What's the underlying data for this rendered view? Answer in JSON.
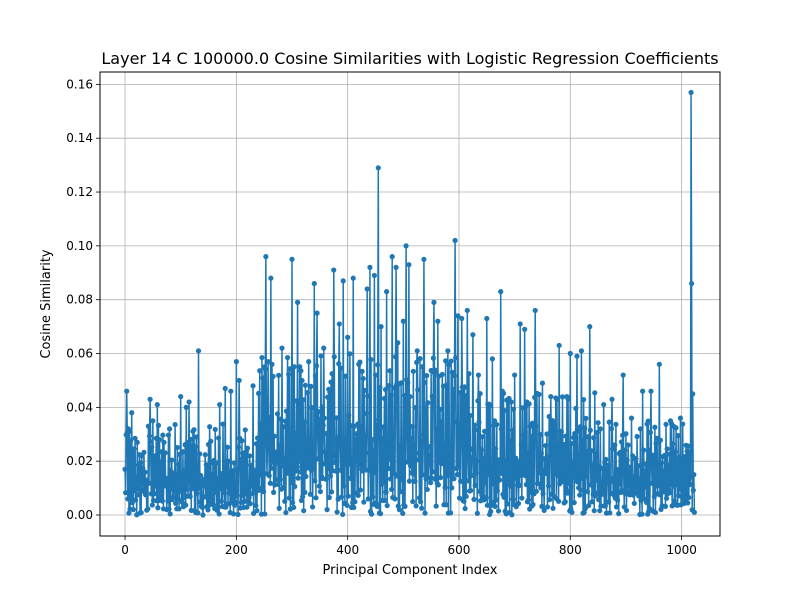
{
  "chart_data": {
    "type": "line",
    "title": "Layer 14 C 100000.0 Cosine Similarities with Logistic Regression Coefficients",
    "xlabel": "Principal Component Index",
    "ylabel": "Cosine Similarity",
    "xlim": [
      -45,
      1069
    ],
    "ylim": [
      -0.0078,
      0.1646
    ],
    "xticks": [
      0,
      200,
      400,
      600,
      800,
      1000
    ],
    "xtick_labels": [
      "0",
      "200",
      "400",
      "600",
      "800",
      "1000"
    ],
    "yticks": [
      0.0,
      0.02,
      0.04,
      0.06,
      0.08,
      0.1,
      0.12,
      0.14,
      0.16
    ],
    "ytick_labels": [
      "0.00",
      "0.02",
      "0.04",
      "0.06",
      "0.08",
      "0.10",
      "0.12",
      "0.14",
      "0.16"
    ],
    "grid": true,
    "marker": "circle",
    "color": "#1f77b4",
    "n_points": 1024,
    "series": [
      {
        "peaks": [
          [
            0,
            0.017
          ],
          [
            3,
            0.046
          ],
          [
            5,
            0.006
          ],
          [
            8,
            0.031
          ],
          [
            12,
            0.038
          ],
          [
            15,
            0.002
          ],
          [
            22,
            0.027
          ],
          [
            30,
            0.022
          ],
          [
            45,
            0.043
          ],
          [
            50,
            0.035
          ],
          [
            58,
            0.041
          ],
          [
            62,
            0.028
          ],
          [
            80,
            0.032
          ],
          [
            100,
            0.044
          ],
          [
            110,
            0.04
          ],
          [
            115,
            0.042
          ],
          [
            132,
            0.061
          ],
          [
            140,
            0.0
          ],
          [
            170,
            0.041
          ],
          [
            180,
            0.047
          ],
          [
            190,
            0.046
          ],
          [
            200,
            0.057
          ],
          [
            205,
            0.05
          ],
          [
            230,
            0.048
          ],
          [
            253,
            0.096
          ],
          [
            257,
            0.057
          ],
          [
            262,
            0.088
          ],
          [
            282,
            0.062
          ],
          [
            300,
            0.095
          ],
          [
            310,
            0.079
          ],
          [
            318,
            0.05
          ],
          [
            330,
            0.057
          ],
          [
            340,
            0.086
          ],
          [
            345,
            0.075
          ],
          [
            357,
            0.062
          ],
          [
            375,
            0.091
          ],
          [
            385,
            0.071
          ],
          [
            392,
            0.087
          ],
          [
            400,
            0.066
          ],
          [
            410,
            0.088
          ],
          [
            420,
            0.056
          ],
          [
            435,
            0.084
          ],
          [
            440,
            0.092
          ],
          [
            448,
            0.089
          ],
          [
            455,
            0.129
          ],
          [
            460,
            0.07
          ],
          [
            470,
            0.083
          ],
          [
            480,
            0.096
          ],
          [
            487,
            0.092
          ],
          [
            490,
            0.064
          ],
          [
            500,
            0.072
          ],
          [
            505,
            0.1
          ],
          [
            510,
            0.093
          ],
          [
            525,
            0.061
          ],
          [
            537,
            0.095
          ],
          [
            555,
            0.079
          ],
          [
            562,
            0.072
          ],
          [
            580,
            0.061
          ],
          [
            593,
            0.102
          ],
          [
            598,
            0.074
          ],
          [
            605,
            0.073
          ],
          [
            615,
            0.076
          ],
          [
            625,
            0.067
          ],
          [
            635,
            0.052
          ],
          [
            650,
            0.073
          ],
          [
            660,
            0.058
          ],
          [
            675,
            0.083
          ],
          [
            700,
            0.052
          ],
          [
            710,
            0.071
          ],
          [
            718,
            0.069
          ],
          [
            737,
            0.076
          ],
          [
            750,
            0.049
          ],
          [
            765,
            0.044
          ],
          [
            780,
            0.063
          ],
          [
            800,
            0.06
          ],
          [
            812,
            0.059
          ],
          [
            820,
            0.061
          ],
          [
            835,
            0.07
          ],
          [
            860,
            0.041
          ],
          [
            875,
            0.043
          ],
          [
            895,
            0.052
          ],
          [
            910,
            0.036
          ],
          [
            930,
            0.046
          ],
          [
            945,
            0.046
          ],
          [
            960,
            0.056
          ],
          [
            980,
            0.035
          ],
          [
            998,
            0.036
          ],
          [
            1017,
            0.157
          ],
          [
            1018,
            0.086
          ],
          [
            1020,
            0.045
          ],
          [
            1022,
            0.015
          ],
          [
            1023,
            0.001
          ]
        ]
      }
    ]
  }
}
